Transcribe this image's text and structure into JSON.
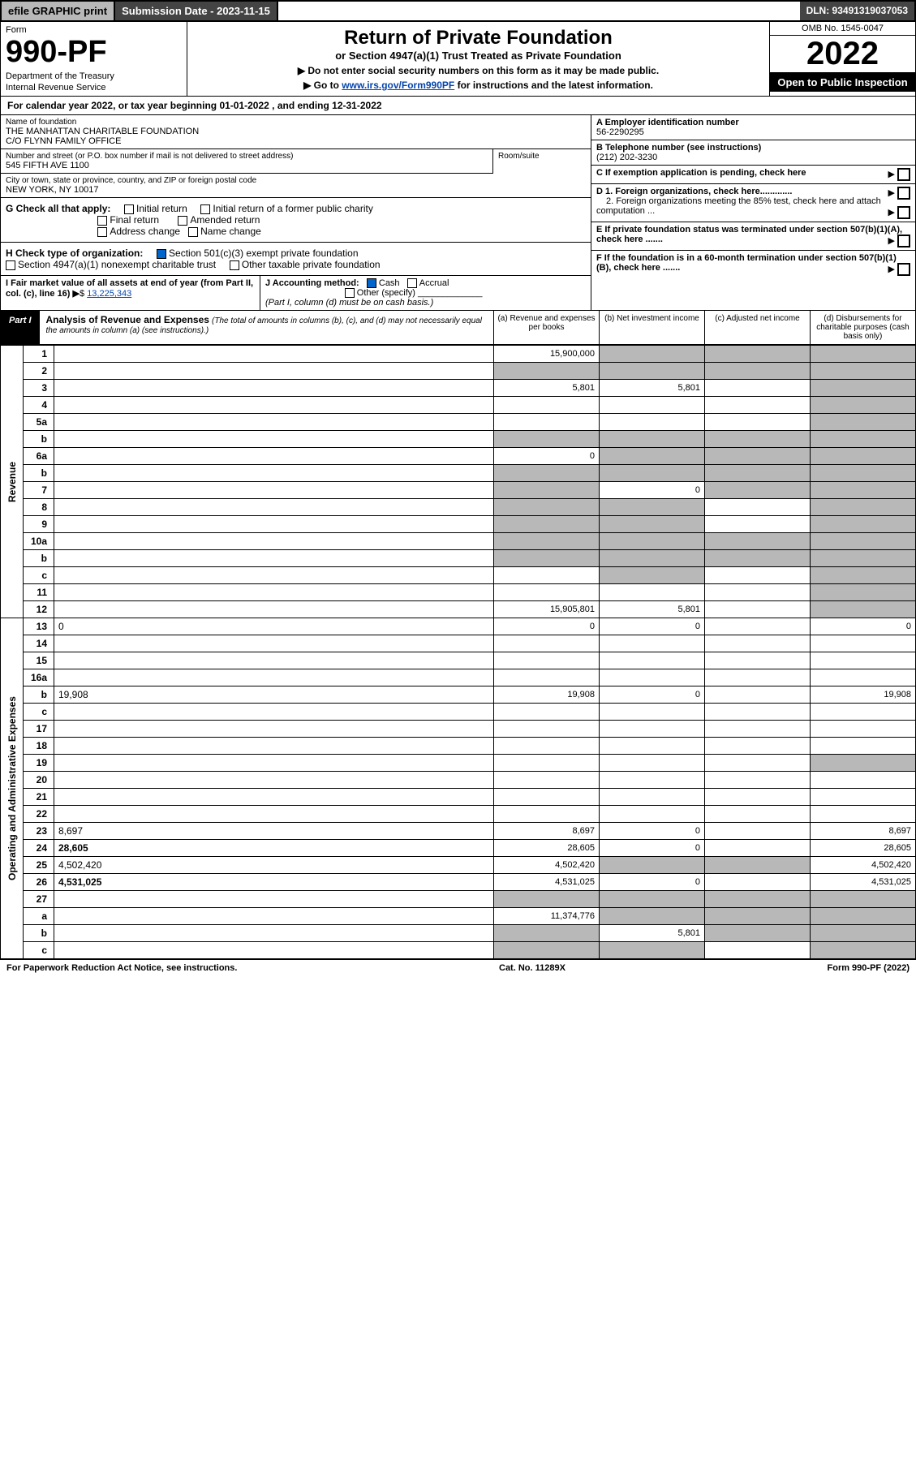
{
  "topbar": {
    "efile": "efile GRAPHIC print",
    "submission_label": "Submission Date - 2023-11-15",
    "dln": "DLN: 93491319037053"
  },
  "header": {
    "form_label": "Form",
    "form_number": "990-PF",
    "dept1": "Department of the Treasury",
    "dept2": "Internal Revenue Service",
    "title": "Return of Private Foundation",
    "subtitle": "or Section 4947(a)(1) Trust Treated as Private Foundation",
    "note1": "▶ Do not enter social security numbers on this form as it may be made public.",
    "note2_pre": "▶ Go to ",
    "note2_link": "www.irs.gov/Form990PF",
    "note2_post": " for instructions and the latest information.",
    "omb": "OMB No. 1545-0047",
    "year": "2022",
    "open": "Open to Public Inspection"
  },
  "calyear": "For calendar year 2022, or tax year beginning 01-01-2022                                               , and ending 12-31-2022",
  "info": {
    "name_label": "Name of foundation",
    "name1": "THE MANHATTAN CHARITABLE FOUNDATION",
    "name2": "C/O FLYNN FAMILY OFFICE",
    "addr_label": "Number and street (or P.O. box number if mail is not delivered to street address)",
    "addr": "545 FIFTH AVE 1100",
    "room_label": "Room/suite",
    "city_label": "City or town, state or province, country, and ZIP or foreign postal code",
    "city": "NEW YORK, NY   10017",
    "A_label": "A Employer identification number",
    "A_val": "56-2290295",
    "B_label": "B Telephone number (see instructions)",
    "B_val": "(212) 202-3230",
    "C_label": "C If exemption application is pending, check here",
    "D1_label": "D 1. Foreign organizations, check here.............",
    "D2_label": "2. Foreign organizations meeting the 85% test, check here and attach computation ...",
    "E_label": "E  If private foundation status was terminated under section 507(b)(1)(A), check here .......",
    "F_label": "F  If the foundation is in a 60-month termination under section 507(b)(1)(B), check here .......",
    "G_label": "G Check all that apply:",
    "G_opts": [
      "Initial return",
      "Initial return of a former public charity",
      "Final return",
      "Amended return",
      "Address change",
      "Name change"
    ],
    "H_label": "H Check type of organization:",
    "H_opt1": "Section 501(c)(3) exempt private foundation",
    "H_opt2": "Section 4947(a)(1) nonexempt charitable trust",
    "H_opt3": "Other taxable private foundation",
    "I_label": "I Fair market value of all assets at end of year (from Part II, col. (c), line 16)",
    "I_val": "13,225,343",
    "J_label": "J Accounting method:",
    "J_cash": "Cash",
    "J_accrual": "Accrual",
    "J_other": "Other (specify)",
    "J_note": "(Part I, column (d) must be on cash basis.)"
  },
  "part1": {
    "tag": "Part I",
    "title": "Analysis of Revenue and Expenses",
    "note": "(The total of amounts in columns (b), (c), and (d) may not necessarily equal the amounts in column (a) (see instructions).)",
    "col_a": "(a)    Revenue and expenses per books",
    "col_b": "(b)    Net investment income",
    "col_c": "(c)    Adjusted net income",
    "col_d": "(d)    Disbursements for charitable purposes (cash basis only)"
  },
  "side": {
    "revenue": "Revenue",
    "expenses": "Operating and Administrative Expenses"
  },
  "rows": [
    {
      "n": "1",
      "d": "",
      "a": "15,900,000",
      "b": "",
      "c": "",
      "shade": [
        "b",
        "c",
        "d"
      ]
    },
    {
      "n": "2",
      "d": "",
      "a": "",
      "b": "",
      "c": "",
      "shade": [
        "a",
        "b",
        "c",
        "d"
      ]
    },
    {
      "n": "3",
      "d": "",
      "a": "5,801",
      "b": "5,801",
      "c": "",
      "shade": [
        "d"
      ]
    },
    {
      "n": "4",
      "d": "",
      "a": "",
      "b": "",
      "c": "",
      "shade": [
        "d"
      ]
    },
    {
      "n": "5a",
      "d": "",
      "a": "",
      "b": "",
      "c": "",
      "shade": [
        "d"
      ]
    },
    {
      "n": "b",
      "d": "",
      "a": "",
      "b": "",
      "c": "",
      "shade": [
        "a",
        "b",
        "c",
        "d"
      ]
    },
    {
      "n": "6a",
      "d": "",
      "a": "0",
      "b": "",
      "c": "",
      "shade": [
        "b",
        "c",
        "d"
      ]
    },
    {
      "n": "b",
      "d": "",
      "a": "",
      "b": "",
      "c": "",
      "shade": [
        "a",
        "b",
        "c",
        "d"
      ]
    },
    {
      "n": "7",
      "d": "",
      "a": "",
      "b": "0",
      "c": "",
      "shade": [
        "a",
        "c",
        "d"
      ]
    },
    {
      "n": "8",
      "d": "",
      "a": "",
      "b": "",
      "c": "",
      "shade": [
        "a",
        "b",
        "d"
      ]
    },
    {
      "n": "9",
      "d": "",
      "a": "",
      "b": "",
      "c": "",
      "shade": [
        "a",
        "b",
        "d"
      ]
    },
    {
      "n": "10a",
      "d": "",
      "a": "",
      "b": "",
      "c": "",
      "shade": [
        "a",
        "b",
        "c",
        "d"
      ]
    },
    {
      "n": "b",
      "d": "",
      "a": "",
      "b": "",
      "c": "",
      "shade": [
        "a",
        "b",
        "c",
        "d"
      ]
    },
    {
      "n": "c",
      "d": "",
      "a": "",
      "b": "",
      "c": "",
      "shade": [
        "b",
        "d"
      ]
    },
    {
      "n": "11",
      "d": "",
      "a": "",
      "b": "",
      "c": "",
      "shade": [
        "d"
      ]
    },
    {
      "n": "12",
      "d": "",
      "a": "15,905,801",
      "b": "5,801",
      "c": "",
      "shade": [
        "d"
      ],
      "bold": true
    }
  ],
  "exp_rows": [
    {
      "n": "13",
      "d": "0",
      "a": "0",
      "b": "0",
      "c": ""
    },
    {
      "n": "14",
      "d": "",
      "a": "",
      "b": "",
      "c": ""
    },
    {
      "n": "15",
      "d": "",
      "a": "",
      "b": "",
      "c": ""
    },
    {
      "n": "16a",
      "d": "",
      "a": "",
      "b": "",
      "c": ""
    },
    {
      "n": "b",
      "d": "19,908",
      "a": "19,908",
      "b": "0",
      "c": ""
    },
    {
      "n": "c",
      "d": "",
      "a": "",
      "b": "",
      "c": ""
    },
    {
      "n": "17",
      "d": "",
      "a": "",
      "b": "",
      "c": ""
    },
    {
      "n": "18",
      "d": "",
      "a": "",
      "b": "",
      "c": ""
    },
    {
      "n": "19",
      "d": "",
      "a": "",
      "b": "",
      "c": "",
      "shade": [
        "d"
      ]
    },
    {
      "n": "20",
      "d": "",
      "a": "",
      "b": "",
      "c": ""
    },
    {
      "n": "21",
      "d": "",
      "a": "",
      "b": "",
      "c": ""
    },
    {
      "n": "22",
      "d": "",
      "a": "",
      "b": "",
      "c": ""
    },
    {
      "n": "23",
      "d": "8,697",
      "a": "8,697",
      "b": "0",
      "c": ""
    },
    {
      "n": "24",
      "d": "28,605",
      "a": "28,605",
      "b": "0",
      "c": "",
      "bold": true
    },
    {
      "n": "25",
      "d": "4,502,420",
      "a": "4,502,420",
      "b": "",
      "c": "",
      "shade": [
        "b",
        "c"
      ]
    },
    {
      "n": "26",
      "d": "4,531,025",
      "a": "4,531,025",
      "b": "0",
      "c": "",
      "bold": true
    },
    {
      "n": "27",
      "d": "",
      "a": "",
      "b": "",
      "c": "",
      "shade": [
        "a",
        "b",
        "c",
        "d"
      ]
    },
    {
      "n": "a",
      "d": "",
      "a": "11,374,776",
      "b": "",
      "c": "",
      "shade": [
        "b",
        "c",
        "d"
      ],
      "bold": true
    },
    {
      "n": "b",
      "d": "",
      "a": "",
      "b": "5,801",
      "c": "",
      "shade": [
        "a",
        "c",
        "d"
      ],
      "bold": true
    },
    {
      "n": "c",
      "d": "",
      "a": "",
      "b": "",
      "c": "",
      "shade": [
        "a",
        "b",
        "d"
      ],
      "bold": true
    }
  ],
  "footer": {
    "left": "For Paperwork Reduction Act Notice, see instructions.",
    "mid": "Cat. No. 11289X",
    "right": "Form 990-PF (2022)"
  }
}
